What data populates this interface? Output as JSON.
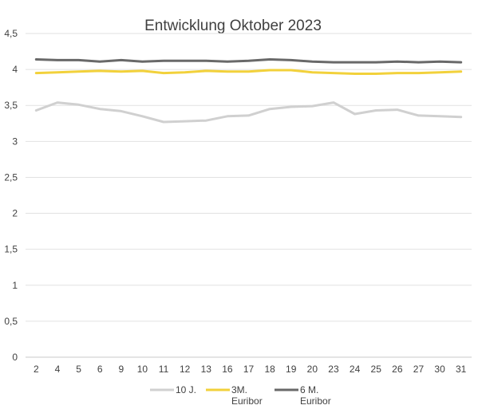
{
  "chart_data": {
    "type": "line",
    "title": "Entwicklung Oktober 2023",
    "xlabel": "",
    "ylabel": "",
    "categories": [
      "2",
      "4",
      "5",
      "6",
      "9",
      "10",
      "11",
      "12",
      "13",
      "16",
      "17",
      "18",
      "19",
      "20",
      "23",
      "24",
      "25",
      "26",
      "27",
      "30",
      "31"
    ],
    "ylim": [
      0,
      4.5
    ],
    "yticks": [
      "0",
      "0,5",
      "1",
      "1,5",
      "2",
      "2,5",
      "3",
      "3,5",
      "4",
      "4,5"
    ],
    "grid": true,
    "legend_position": "bottom",
    "series": [
      {
        "name": "10 J.",
        "name_lines": [
          "10 J."
        ],
        "color": "#d0d0d0",
        "values": [
          3.43,
          3.54,
          3.51,
          3.45,
          3.42,
          3.35,
          3.27,
          3.28,
          3.29,
          3.35,
          3.36,
          3.45,
          3.48,
          3.49,
          3.54,
          3.38,
          3.43,
          3.44,
          3.36,
          3.35,
          3.34
        ]
      },
      {
        "name": "3M. Euribor",
        "name_lines": [
          "3M.",
          "Euribor"
        ],
        "color": "#f2d13b",
        "values": [
          3.95,
          3.96,
          3.97,
          3.98,
          3.97,
          3.98,
          3.95,
          3.96,
          3.98,
          3.97,
          3.97,
          3.99,
          3.99,
          3.96,
          3.95,
          3.94,
          3.94,
          3.95,
          3.95,
          3.96,
          3.97
        ]
      },
      {
        "name": "6 M. Euribor",
        "name_lines": [
          "6 M.",
          "Euribor"
        ],
        "color": "#696969",
        "values": [
          4.14,
          4.13,
          4.13,
          4.11,
          4.13,
          4.11,
          4.12,
          4.12,
          4.12,
          4.11,
          4.12,
          4.14,
          4.13,
          4.11,
          4.1,
          4.1,
          4.1,
          4.11,
          4.1,
          4.11,
          4.1
        ]
      }
    ]
  }
}
